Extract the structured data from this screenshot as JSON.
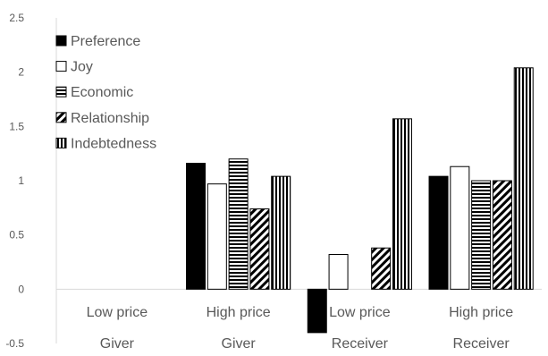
{
  "chart_data": {
    "type": "bar",
    "title": "",
    "xlabel": "",
    "ylabel": "",
    "ylim": [
      -0.5,
      2.5
    ],
    "yticks": [
      -0.5,
      0,
      0.5,
      1,
      1.5,
      2,
      2.5
    ],
    "ytick_labels": [
      "-0.5",
      "0",
      "0.5",
      "1",
      "1.5",
      "2",
      "2.5"
    ],
    "grid": false,
    "legend_position": "top-left",
    "categories": [
      {
        "line1": "Low price",
        "line2": "Giver"
      },
      {
        "line1": "High price",
        "line2": "Giver"
      },
      {
        "line1": "Low price",
        "line2": "Receiver"
      },
      {
        "line1": "High price",
        "line2": "Receiver"
      }
    ],
    "series": [
      {
        "name": "Preference",
        "pattern": "solid-black",
        "values": [
          0,
          1.16,
          -0.4,
          1.04
        ]
      },
      {
        "name": "Joy",
        "pattern": "white",
        "values": [
          0,
          0.97,
          0.32,
          1.13
        ]
      },
      {
        "name": "Economic",
        "pattern": "horizontal-lines",
        "values": [
          0,
          1.2,
          0,
          1.0
        ]
      },
      {
        "name": "Relationship",
        "pattern": "diagonal-lines",
        "values": [
          0,
          0.74,
          0.38,
          1.0
        ]
      },
      {
        "name": "Indebtedness",
        "pattern": "vertical-lines",
        "values": [
          0,
          1.04,
          1.57,
          2.04
        ]
      }
    ]
  }
}
